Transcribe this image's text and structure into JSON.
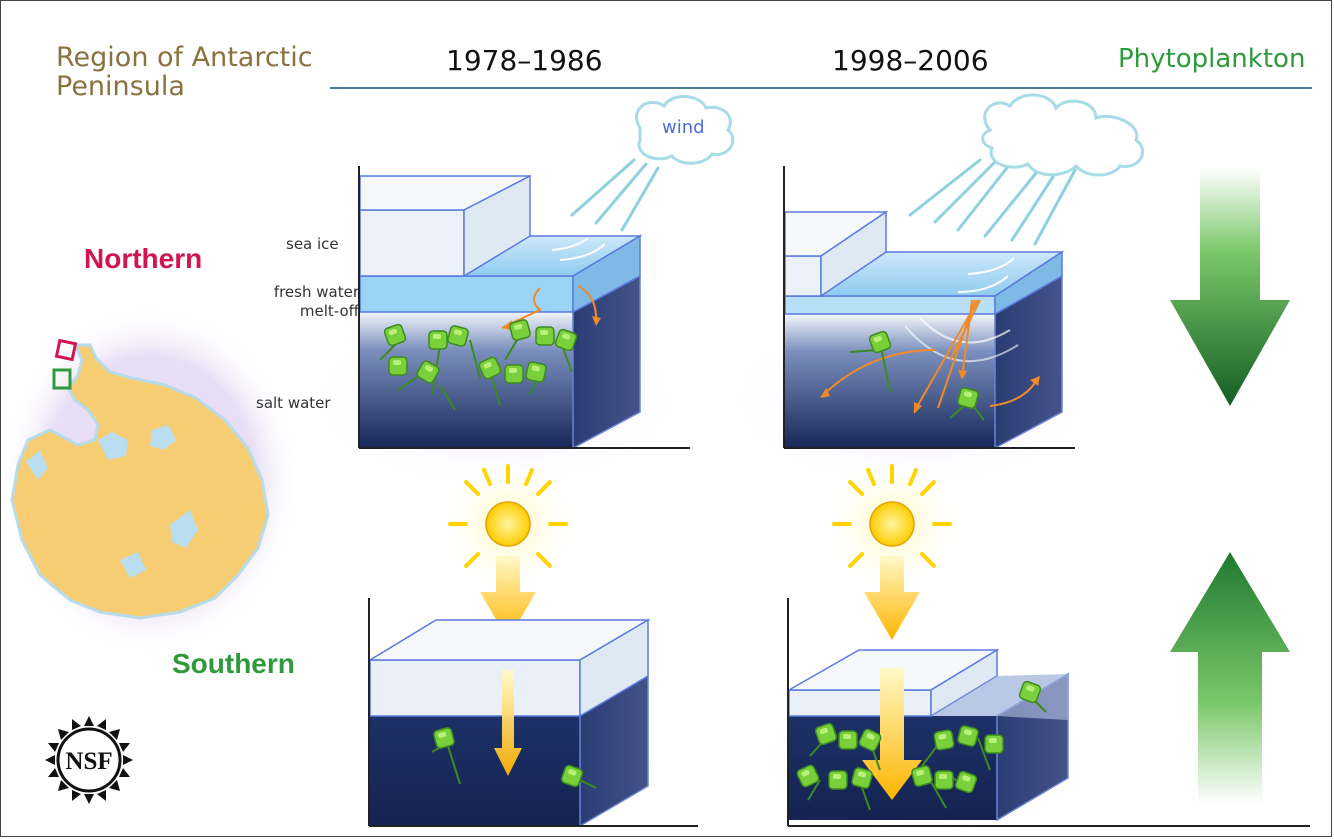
{
  "header": {
    "region_title": "Region of Antarctic Peninsula",
    "period_1": "1978–1986",
    "period_2": "1998–2006",
    "phytoplankton_label": "Phytoplankton"
  },
  "regions": {
    "northern": "Northern",
    "southern": "Southern"
  },
  "layer_labels": {
    "sea_ice": "sea ice",
    "fresh_water": "fresh water melt-off",
    "salt_water": "salt water"
  },
  "annotations": {
    "wind": "wind"
  },
  "logo": {
    "text": "NSF",
    "icon": "nsf-logo-icon"
  },
  "trends": {
    "northern": "decrease",
    "southern": "increase"
  },
  "colors": {
    "northern_label": "#d2144f",
    "southern_label": "#2f9a3c",
    "region_title": "#8a7240",
    "water_dark": "#16285a",
    "ice": "#eaf1f8",
    "phytoplankton": "#7ad03a",
    "map_land": "#f7cd73",
    "sun": "#ffdd22"
  }
}
